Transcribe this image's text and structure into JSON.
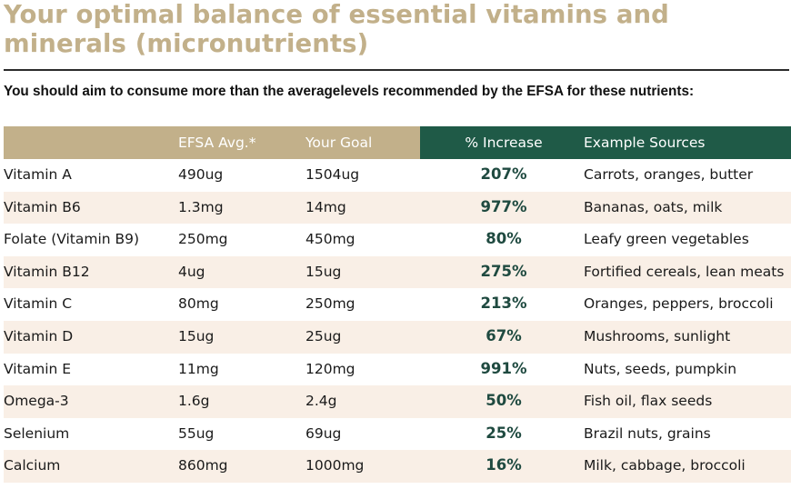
{
  "title": "Your optimal balance of essential vitamins and minerals (micronutrients)",
  "subtitle": "You should aim to consume more than the averagelevels recommended by the EFSA for these nutrients:",
  "colors": {
    "header_left": "#c2b08a",
    "header_right": "#1f5a47",
    "title": "#c2b08a",
    "row_alt": "#f9efe6",
    "percent": "#1f4a40"
  },
  "table": {
    "headers": [
      "",
      "EFSA Avg.*",
      "Your Goal",
      "% Increase",
      "Example Sources"
    ],
    "rows": [
      [
        "Vitamin A",
        "490ug",
        "1504ug",
        "207%",
        "Carrots, oranges, butter"
      ],
      [
        "Vitamin B6",
        "1.3mg",
        "14mg",
        "977%",
        "Bananas, oats, milk"
      ],
      [
        "Folate (Vitamin B9)",
        "250mg",
        "450mg",
        "80%",
        "Leafy green vegetables"
      ],
      [
        "Vitamin B12",
        "4ug",
        "15ug",
        "275%",
        "Fortified cereals, lean meats"
      ],
      [
        "Vitamin C",
        "80mg",
        "250mg",
        "213%",
        "Oranges, peppers, broccoli"
      ],
      [
        "Vitamin D",
        "15ug",
        "25ug",
        "67%",
        "Mushrooms, sunlight"
      ],
      [
        "Vitamin E",
        "11mg",
        "120mg",
        "991%",
        "Nuts, seeds, pumpkin"
      ],
      [
        "Omega-3",
        "1.6g",
        "2.4g",
        "50%",
        "Fish oil, flax seeds"
      ],
      [
        "Selenium",
        "55ug",
        "69ug",
        "25%",
        "Brazil nuts, grains"
      ],
      [
        "Calcium",
        "860mg",
        "1000mg",
        "16%",
        "Milk, cabbage, broccoli"
      ]
    ]
  }
}
